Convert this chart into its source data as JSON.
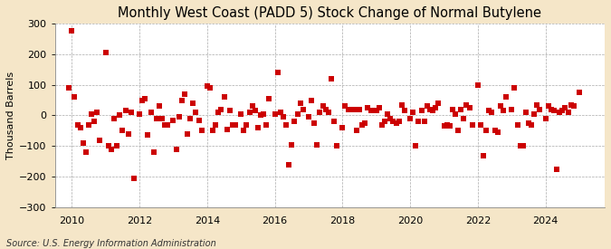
{
  "title": "Monthly West Coast (PADD 5) Stock Change of Normal Butylene",
  "ylabel": "Thousand Barrels",
  "source": "Source: U.S. Energy Information Administration",
  "bg_color": "#f5e6c8",
  "plot_bg_color": "#ffffff",
  "marker_color": "#cc0000",
  "marker_size": 14,
  "marker": "s",
  "ylim": [
    -300,
    300
  ],
  "yticks": [
    -300,
    -200,
    -100,
    0,
    100,
    200,
    300
  ],
  "xlim_start": 2009.5,
  "xlim_end": 2025.75,
  "xticks": [
    2010,
    2012,
    2014,
    2016,
    2018,
    2020,
    2022,
    2024
  ],
  "grid_color": "#aaaaaa",
  "grid_style": "--",
  "title_fontsize": 10.5,
  "axis_fontsize": 8,
  "source_fontsize": 7,
  "data": {
    "dates": [
      2009.917,
      2010.0,
      2010.083,
      2010.167,
      2010.25,
      2010.333,
      2010.417,
      2010.5,
      2010.583,
      2010.667,
      2010.75,
      2010.833,
      2011.0,
      2011.083,
      2011.167,
      2011.25,
      2011.333,
      2011.417,
      2011.5,
      2011.583,
      2011.667,
      2011.75,
      2011.833,
      2012.0,
      2012.083,
      2012.167,
      2012.25,
      2012.333,
      2012.417,
      2012.5,
      2012.583,
      2012.667,
      2012.75,
      2012.833,
      2013.0,
      2013.083,
      2013.167,
      2013.25,
      2013.333,
      2013.417,
      2013.5,
      2013.583,
      2013.667,
      2013.75,
      2013.833,
      2014.0,
      2014.083,
      2014.167,
      2014.25,
      2014.333,
      2014.417,
      2014.5,
      2014.583,
      2014.667,
      2014.75,
      2014.833,
      2015.0,
      2015.083,
      2015.167,
      2015.25,
      2015.333,
      2015.417,
      2015.5,
      2015.583,
      2015.667,
      2015.75,
      2015.833,
      2016.0,
      2016.083,
      2016.167,
      2016.25,
      2016.333,
      2016.417,
      2016.5,
      2016.583,
      2016.667,
      2016.75,
      2016.833,
      2017.0,
      2017.083,
      2017.167,
      2017.25,
      2017.333,
      2017.417,
      2017.5,
      2017.583,
      2017.667,
      2017.75,
      2017.833,
      2018.0,
      2018.083,
      2018.167,
      2018.25,
      2018.333,
      2018.417,
      2018.5,
      2018.583,
      2018.667,
      2018.75,
      2018.833,
      2019.0,
      2019.083,
      2019.167,
      2019.25,
      2019.333,
      2019.417,
      2019.5,
      2019.583,
      2019.667,
      2019.75,
      2019.833,
      2020.0,
      2020.083,
      2020.167,
      2020.25,
      2020.333,
      2020.417,
      2020.5,
      2020.583,
      2020.667,
      2020.75,
      2020.833,
      2021.0,
      2021.083,
      2021.167,
      2021.25,
      2021.333,
      2021.417,
      2021.5,
      2021.583,
      2021.667,
      2021.75,
      2021.833,
      2022.0,
      2022.083,
      2022.167,
      2022.25,
      2022.333,
      2022.417,
      2022.5,
      2022.583,
      2022.667,
      2022.75,
      2022.833,
      2023.0,
      2023.083,
      2023.167,
      2023.25,
      2023.333,
      2023.417,
      2023.5,
      2023.583,
      2023.667,
      2023.75,
      2023.833,
      2024.0,
      2024.083,
      2024.167,
      2024.25,
      2024.333,
      2024.417,
      2024.5,
      2024.583,
      2024.667,
      2024.75,
      2024.833,
      2025.0
    ],
    "values": [
      90,
      275,
      60,
      -30,
      -40,
      -90,
      -120,
      -30,
      5,
      -20,
      10,
      -80,
      205,
      -100,
      -110,
      -10,
      -100,
      0,
      -50,
      15,
      -60,
      10,
      -205,
      5,
      50,
      55,
      -65,
      10,
      -120,
      -10,
      30,
      -10,
      -30,
      -30,
      -15,
      -110,
      -5,
      50,
      70,
      -60,
      -10,
      40,
      10,
      -15,
      -50,
      95,
      90,
      -50,
      -30,
      10,
      20,
      60,
      -45,
      15,
      -30,
      -30,
      5,
      -50,
      -30,
      10,
      30,
      15,
      -40,
      0,
      5,
      -30,
      55,
      5,
      140,
      10,
      -5,
      -30,
      -160,
      -95,
      -20,
      5,
      40,
      20,
      -5,
      50,
      -25,
      -95,
      10,
      30,
      20,
      10,
      120,
      -20,
      -100,
      -40,
      30,
      20,
      20,
      20,
      -50,
      20,
      -30,
      -25,
      25,
      15,
      15,
      25,
      -30,
      -20,
      5,
      -10,
      -20,
      -25,
      -20,
      35,
      15,
      -10,
      10,
      -100,
      -20,
      15,
      -20,
      30,
      20,
      15,
      25,
      40,
      -35,
      -30,
      -35,
      20,
      5,
      -50,
      20,
      -10,
      35,
      25,
      -30,
      100,
      -30,
      -130,
      -50,
      15,
      10,
      -50,
      -55,
      30,
      15,
      60,
      20,
      90,
      -30,
      -100,
      -100,
      10,
      -25,
      -30,
      5,
      35,
      20,
      -10,
      30,
      20,
      15,
      -175,
      10,
      15,
      25,
      10,
      35,
      30,
      75
    ]
  }
}
